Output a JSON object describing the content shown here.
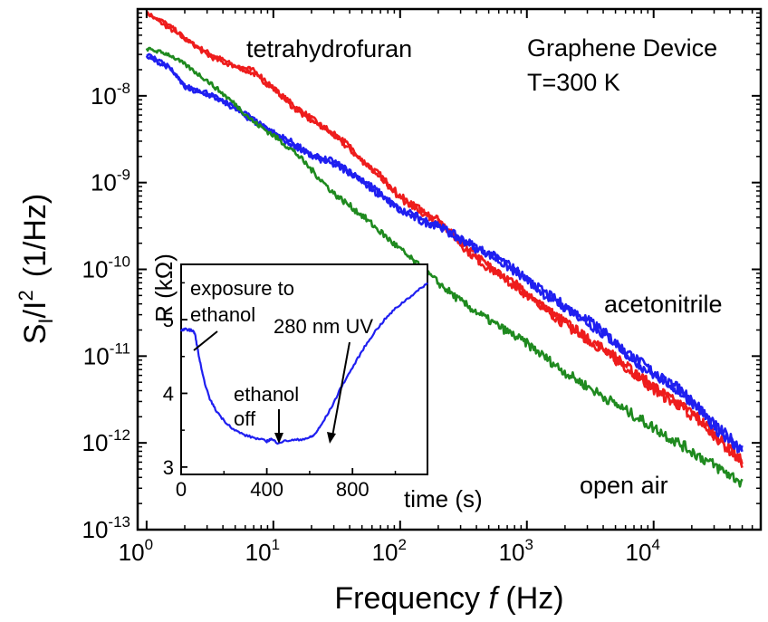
{
  "chart_data": [
    {
      "type": "line",
      "xlabel": "Frequency f (Hz)",
      "xlabel_parts": {
        "prefix": "Frequency ",
        "var": "f",
        "suffix": " (Hz)"
      },
      "ylabel_parts": {
        "s": "S",
        "sub": "I",
        "mid": "/I",
        "sup": "2",
        "units": "(1/Hz)"
      },
      "xscale": "log",
      "yscale": "log",
      "xlim": [
        0.85,
        70000
      ],
      "ylim": [
        1e-13,
        1e-07
      ],
      "x_ticks": [
        {
          "base": "10",
          "exp": "0"
        },
        {
          "base": "10",
          "exp": "1"
        },
        {
          "base": "10",
          "exp": "2"
        },
        {
          "base": "10",
          "exp": "3"
        },
        {
          "base": "10",
          "exp": "4"
        }
      ],
      "y_ticks": [
        {
          "base": "10",
          "exp": "-13"
        },
        {
          "base": "10",
          "exp": "-12"
        },
        {
          "base": "10",
          "exp": "-11"
        },
        {
          "base": "10",
          "exp": "-10"
        },
        {
          "base": "10",
          "exp": "-9"
        },
        {
          "base": "10",
          "exp": "-8"
        }
      ],
      "annotations": {
        "tetrahydrofuran": "tetrahydrofuran",
        "device": "Graphene Device",
        "temperature": "T=300 K",
        "acetonitrile": "acetonitrile",
        "open_air": "open air"
      },
      "series": [
        {
          "name": "tetrahydrofuran",
          "color": "#ee1c1c",
          "traces": 2,
          "x": [
            1,
            1.5,
            2,
            3,
            5,
            7,
            10,
            15,
            20,
            30,
            50,
            70,
            100,
            150,
            200,
            300,
            500,
            1000,
            2000,
            5000,
            10000,
            20000,
            30000,
            50000
          ],
          "y": [
            9e-08,
            6e-08,
            4.5e-08,
            3.2e-08,
            2.2e-08,
            1.8e-08,
            1.2e-08,
            7.5e-09,
            5.5e-09,
            3.5e-09,
            1.8e-09,
            1.2e-09,
            7e-10,
            4.5e-10,
            3.5e-10,
            2e-10,
            1.1e-10,
            5e-11,
            2.5e-11,
            9e-12,
            4.5e-12,
            2.1e-12,
            1.2e-12,
            6.5e-13
          ]
        },
        {
          "name": "acetonitrile",
          "color": "#1f1ff0",
          "traces": 2,
          "x": [
            1,
            1.5,
            2,
            3,
            5,
            7,
            10,
            15,
            20,
            30,
            50,
            70,
            100,
            150,
            200,
            300,
            500,
            1000,
            2000,
            5000,
            10000,
            20000,
            30000,
            50000
          ],
          "y": [
            2.8e-08,
            2.1e-08,
            1.3e-08,
            1.1e-08,
            7e-09,
            5e-09,
            3.8e-09,
            2.8e-09,
            2e-09,
            1.6e-09,
            1.1e-09,
            7.5e-10,
            4.8e-10,
            3.5e-10,
            3.2e-10,
            2.3e-10,
            1.5e-10,
            7.5e-11,
            3.8e-11,
            1.4e-11,
            6.5e-12,
            3e-12,
            1.6e-12,
            8.5e-13
          ]
        },
        {
          "name": "open air",
          "color": "#1f8a1f",
          "traces": 1,
          "x": [
            1,
            1.5,
            2,
            3,
            5,
            7,
            10,
            15,
            20,
            30,
            50,
            70,
            100,
            150,
            200,
            300,
            500,
            1000,
            2000,
            5000,
            10000,
            20000,
            30000,
            50000
          ],
          "y": [
            3.5e-08,
            3e-08,
            2.3e-08,
            1.5e-08,
            8e-09,
            5e-09,
            3.5e-09,
            2.2e-09,
            1.4e-09,
            7.5e-10,
            4.2e-10,
            2.7e-10,
            1.7e-10,
            1e-10,
            7e-11,
            4.3e-11,
            2.6e-11,
            1.4e-11,
            6.5e-12,
            2.8e-12,
            1.5e-12,
            8e-13,
            5.5e-13,
            3.5e-13
          ]
        }
      ]
    },
    {
      "type": "line",
      "role": "inset",
      "xlabel": "time (s)",
      "ylabel": "R (kΩ)",
      "xlim": [
        0,
        1150
      ],
      "ylim": [
        2.9,
        5.75
      ],
      "x_ticks": [
        "0",
        "400",
        "800"
      ],
      "y_ticks": [
        "3",
        "4",
        "5"
      ],
      "annotations": {
        "exposure_line1": "exposure to",
        "exposure_line2": "ethanol",
        "ethanol_off_line1": "ethanol",
        "ethanol_off_line2": "off",
        "uv": "280 nm UV"
      },
      "series": [
        {
          "name": "R",
          "color": "#1f1ff0",
          "x": [
            0,
            20,
            40,
            55,
            65,
            80,
            100,
            130,
            160,
            200,
            250,
            300,
            350,
            400,
            420,
            450,
            500,
            550,
            600,
            620,
            650,
            700,
            750,
            800,
            850,
            900,
            950,
            1000,
            1050,
            1100,
            1150
          ],
          "y": [
            4.85,
            4.87,
            4.86,
            4.85,
            4.8,
            4.55,
            4.25,
            3.95,
            3.78,
            3.63,
            3.5,
            3.43,
            3.39,
            3.35,
            3.38,
            3.33,
            3.36,
            3.37,
            3.4,
            3.43,
            3.55,
            3.8,
            4.1,
            4.35,
            4.6,
            4.82,
            5.0,
            5.15,
            5.27,
            5.38,
            5.5
          ]
        }
      ]
    }
  ]
}
